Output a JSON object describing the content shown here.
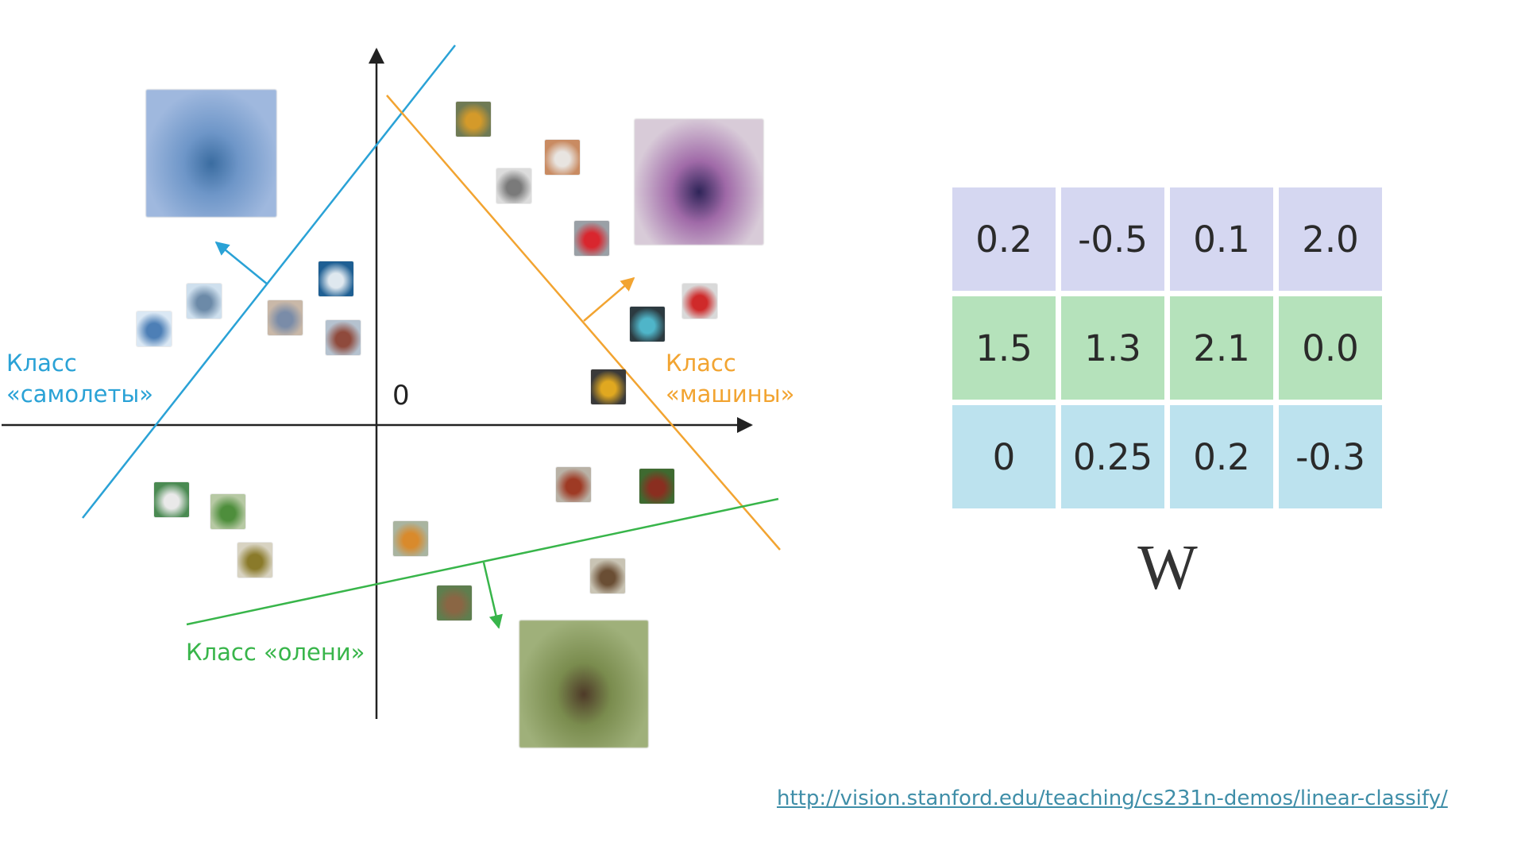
{
  "labels": {
    "planes": "Класс\n«самолеты»",
    "cars": "Класс\n«машины»",
    "deer": "Класс «олени»",
    "origin": "0"
  },
  "colors": {
    "planes": "#2aa2d6",
    "cars": "#f2a431",
    "deer": "#38b54a",
    "axis": "#222222"
  },
  "thumbnails": [
    {
      "name": "plane-1-icon",
      "category": "plane",
      "colors": [
        "#dbe8f4",
        "#4d7fb6"
      ]
    },
    {
      "name": "plane-2-icon",
      "category": "plane",
      "colors": [
        "#cfe0ee",
        "#6c8aa8"
      ]
    },
    {
      "name": "ship-1-icon",
      "category": "ship",
      "colors": [
        "#c9b8a8",
        "#7a8ca8"
      ]
    },
    {
      "name": "ship-2-icon",
      "category": "ship",
      "colors": [
        "#1e5f93",
        "#dfe8ef"
      ]
    },
    {
      "name": "ship-3-icon",
      "category": "ship",
      "colors": [
        "#b5c2cf",
        "#8f4a3c"
      ]
    },
    {
      "name": "car-1-icon",
      "category": "car",
      "colors": [
        "#6f7a54",
        "#d49a2a"
      ]
    },
    {
      "name": "car-2-icon",
      "category": "car",
      "colors": [
        "#c98b62",
        "#e8e4e0"
      ]
    },
    {
      "name": "car-3-icon",
      "category": "car",
      "colors": [
        "#dcdcdc",
        "#7a7a7a"
      ]
    },
    {
      "name": "car-4-icon",
      "category": "car",
      "colors": [
        "#9aa0a6",
        "#d9262e"
      ]
    },
    {
      "name": "car-5-icon",
      "category": "car",
      "colors": [
        "#d9d9d9",
        "#cf2a2a"
      ]
    },
    {
      "name": "car-6-icon",
      "category": "car",
      "colors": [
        "#2c3a40",
        "#4fb5c9"
      ]
    },
    {
      "name": "bus-icon",
      "category": "truck",
      "colors": [
        "#3a3a3a",
        "#e0a820"
      ]
    },
    {
      "name": "cat-icon",
      "category": "cat",
      "colors": [
        "#4a8a52",
        "#e9e9e9"
      ]
    },
    {
      "name": "frog-1-icon",
      "category": "frog",
      "colors": [
        "#b7c9a4",
        "#4e8e3c"
      ]
    },
    {
      "name": "frog-2-icon",
      "category": "frog",
      "colors": [
        "#d8d3c2",
        "#8a7a2a"
      ]
    },
    {
      "name": "bird-1-icon",
      "category": "bird",
      "colors": [
        "#a9b4a0",
        "#d98a2c"
      ]
    },
    {
      "name": "rooster-icon",
      "category": "bird",
      "colors": [
        "#b9b2a6",
        "#9e3a24"
      ]
    },
    {
      "name": "bird-2-icon",
      "category": "bird",
      "colors": [
        "#3e6a30",
        "#8a2e20"
      ]
    },
    {
      "name": "deer-1-icon",
      "category": "deer",
      "colors": [
        "#c9c4b4",
        "#6a4e34"
      ]
    },
    {
      "name": "deer-2-icon",
      "category": "deer",
      "colors": [
        "#5e7e4e",
        "#8a6644"
      ]
    }
  ],
  "prototypes": [
    {
      "name": "plane-template-icon",
      "colors": [
        "#9fb8de",
        "#3a6ca0",
        "#6e96c8"
      ]
    },
    {
      "name": "car-template-icon",
      "colors": [
        "#d8cbd8",
        "#2e2458",
        "#a06aa8"
      ]
    },
    {
      "name": "deer-template-icon",
      "colors": [
        "#9fb07a",
        "#4e3a28",
        "#7a8c4e"
      ]
    }
  ],
  "weights": {
    "rows": [
      {
        "color": "#d5d7f1",
        "values": [
          "0.2",
          "-0.5",
          "0.1",
          "2.0"
        ]
      },
      {
        "color": "#b5e2bb",
        "values": [
          "1.5",
          "1.3",
          "2.1",
          "0.0"
        ]
      },
      {
        "color": "#bce2ee",
        "values": [
          "0",
          "0.25",
          "0.2",
          "-0.3"
        ]
      }
    ],
    "label": "W"
  },
  "link": "http://vision.stanford.edu/teaching/cs231n-demos/linear-classify/"
}
